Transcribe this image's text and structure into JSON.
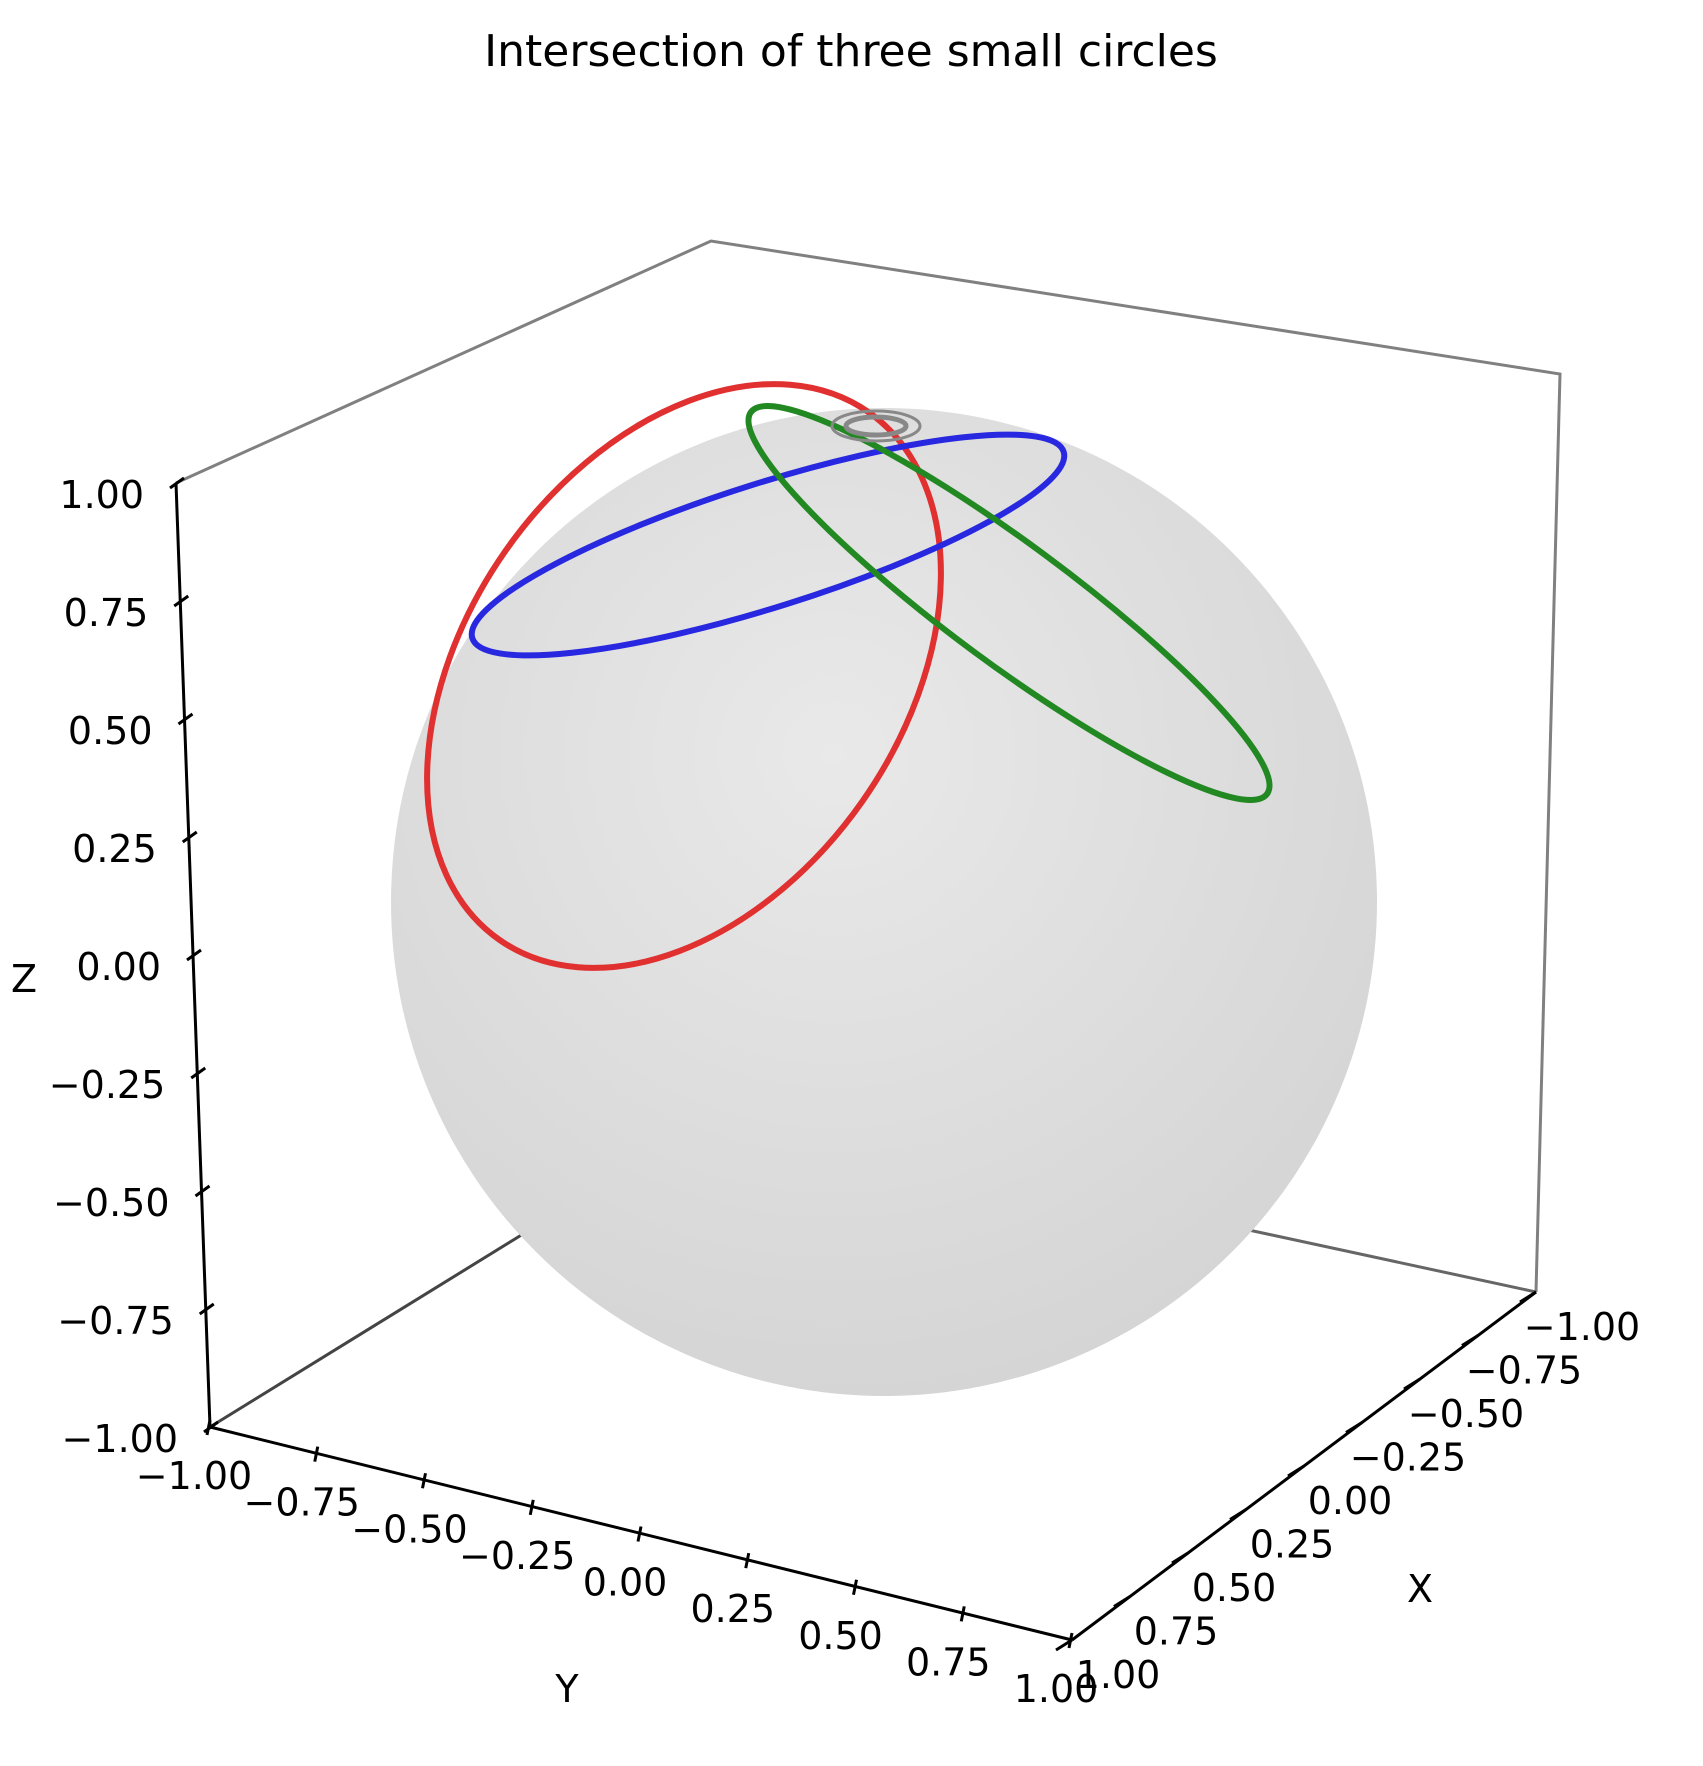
{
  "chart_data": {
    "type": "line3d",
    "title": "Intersection of three small circles",
    "xlabel": "X",
    "ylabel": "Y",
    "zlabel": "Z",
    "xlim": [
      -1.0,
      1.0
    ],
    "ylim": [
      -1.0,
      1.0
    ],
    "zlim": [
      -1.0,
      1.0
    ],
    "ticks": {
      "x": [
        "−1.00",
        "−0.75",
        "−0.50",
        "−0.25",
        "0.00",
        "0.25",
        "0.50",
        "0.75",
        "1.00"
      ],
      "y": [
        "−1.00",
        "−0.75",
        "−0.50",
        "−0.25",
        "0.00",
        "0.25",
        "0.50",
        "0.75",
        "1.00"
      ],
      "z": [
        "−1.00",
        "−0.75",
        "−0.50",
        "−0.25",
        "0.00",
        "0.25",
        "0.50",
        "0.75",
        "1.00"
      ]
    },
    "sphere": {
      "radius": 1.0,
      "color": "#d9d9d9"
    },
    "series": [
      {
        "color": "#e03030",
        "geometry": "small circle on unit sphere"
      },
      {
        "color": "#2828e0",
        "geometry": "small circle on unit sphere"
      },
      {
        "color": "#228822",
        "geometry": "small circle on unit sphere"
      },
      {
        "color": "#888888",
        "geometry": "intersection marker near north pole"
      }
    ]
  }
}
